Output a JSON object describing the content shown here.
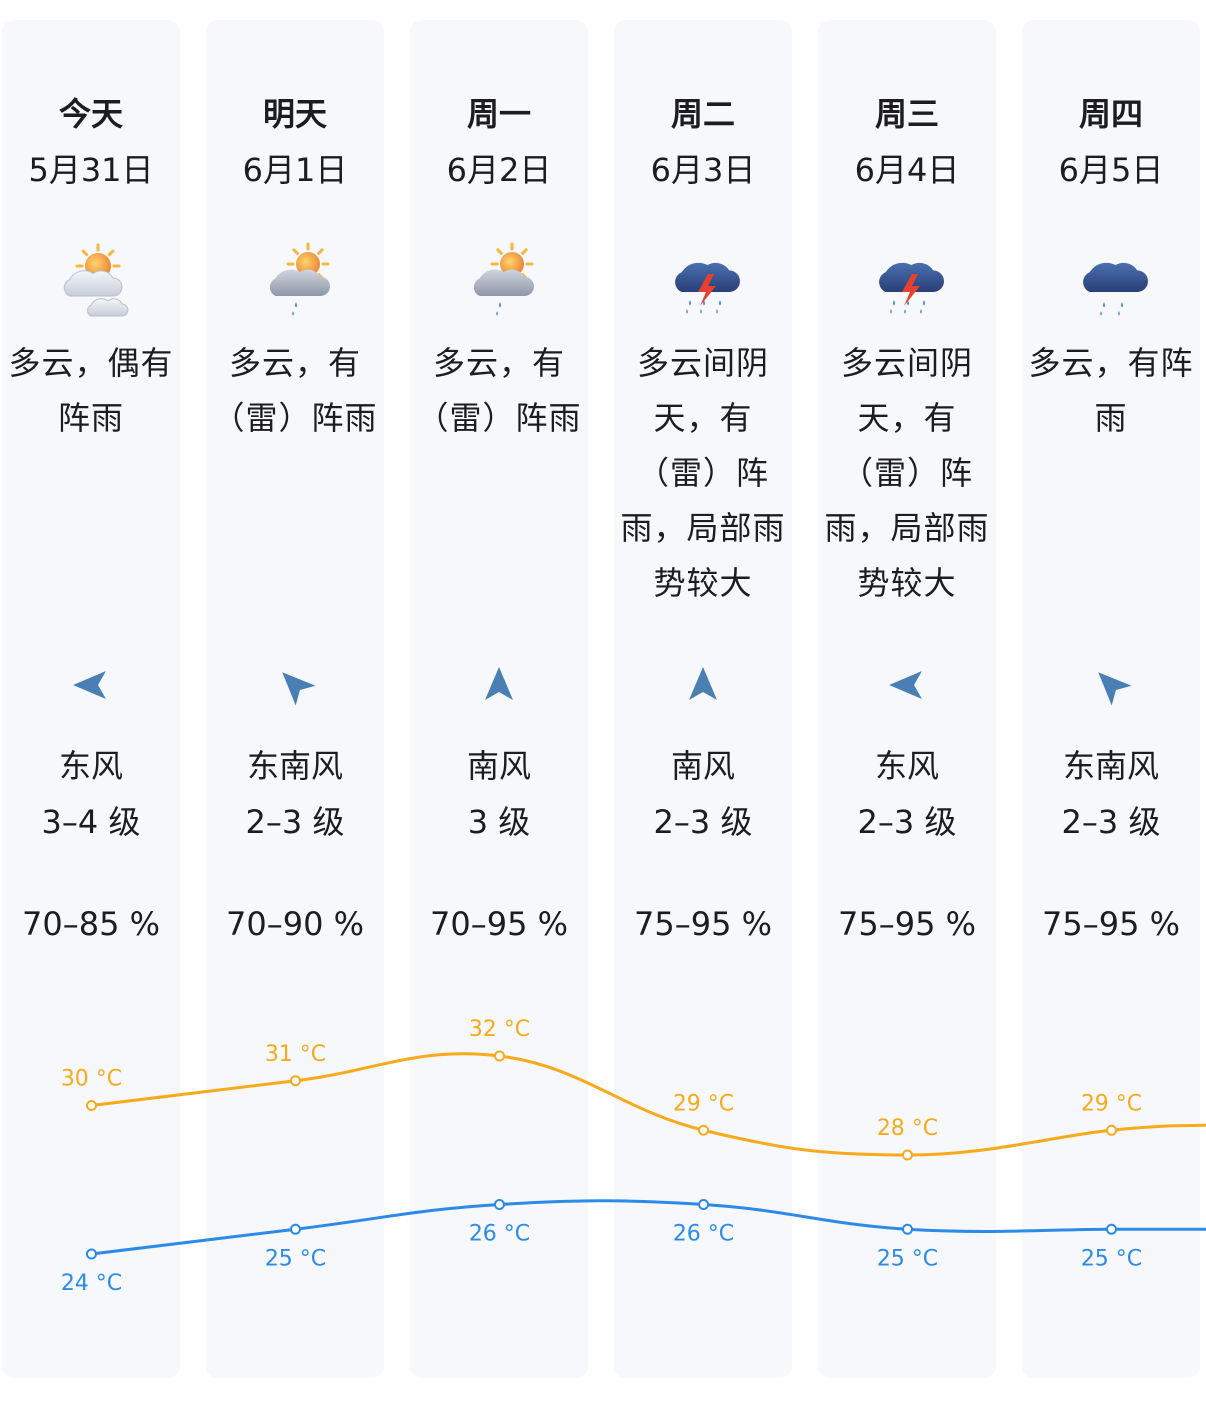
{
  "colors": {
    "high": "#f7aa1c",
    "low": "#2c8be8",
    "column_bg": "#f6f8fb",
    "text": "#1d1d1f",
    "wind_arrow": "#4a7fb3"
  },
  "days": [
    {
      "dow": "今天",
      "date": "5月31日",
      "icon": "partly-cloudy-icon",
      "desc": [
        "多云，偶有",
        "阵雨"
      ],
      "wind_icon": "wind-arrow-icon",
      "wind_arrow_deg": 270,
      "wind_dir": "东风",
      "wind_level": "3–4 级",
      "humidity": "70–85 %"
    },
    {
      "dow": "明天",
      "date": "6月1日",
      "icon": "sun-cloud-rain-icon",
      "desc": [
        "多云，有",
        "（雷）阵雨"
      ],
      "wind_icon": "wind-arrow-icon",
      "wind_arrow_deg": 315,
      "wind_dir": "东南风",
      "wind_level": "2–3 级",
      "humidity": "70–90 %"
    },
    {
      "dow": "周一",
      "date": "6月2日",
      "icon": "sun-cloud-rain-icon",
      "desc": [
        "多云，有",
        "（雷）阵雨"
      ],
      "wind_icon": "wind-arrow-icon",
      "wind_arrow_deg": 0,
      "wind_dir": "南风",
      "wind_level": "3 级",
      "humidity": "70–95 %"
    },
    {
      "dow": "周二",
      "date": "6月3日",
      "icon": "thunderstorm-icon",
      "desc": [
        "多云间阴",
        "天，有",
        "（雷）阵",
        "雨，局部雨",
        "势较大"
      ],
      "wind_icon": "wind-arrow-icon",
      "wind_arrow_deg": 0,
      "wind_dir": "南风",
      "wind_level": "2–3 级",
      "humidity": "75–95 %"
    },
    {
      "dow": "周三",
      "date": "6月4日",
      "icon": "thunderstorm-icon",
      "desc": [
        "多云间阴",
        "天，有",
        "（雷）阵",
        "雨，局部雨",
        "势较大"
      ],
      "wind_icon": "wind-arrow-icon",
      "wind_arrow_deg": 270,
      "wind_dir": "东风",
      "wind_level": "2–3 级",
      "humidity": "75–95 %"
    },
    {
      "dow": "周四",
      "date": "6月5日",
      "icon": "rain-cloud-icon",
      "desc": [
        "多云，有阵",
        "雨"
      ],
      "wind_icon": "wind-arrow-icon",
      "wind_arrow_deg": 315,
      "wind_dir": "东南风",
      "wind_level": "2–3 级",
      "humidity": "75–95 %"
    }
  ],
  "chart_data": {
    "type": "line",
    "categories": [
      "今天",
      "明天",
      "周一",
      "周二",
      "周三",
      "周四"
    ],
    "series": [
      {
        "values": [
          30,
          31,
          32,
          29,
          28,
          29
        ]
      },
      {
        "values": [
          24,
          25,
          26,
          26,
          25,
          25
        ]
      }
    ],
    "unit": "°C",
    "ylim": [
      20,
      36
    ],
    "grid": false,
    "legend": "none"
  }
}
